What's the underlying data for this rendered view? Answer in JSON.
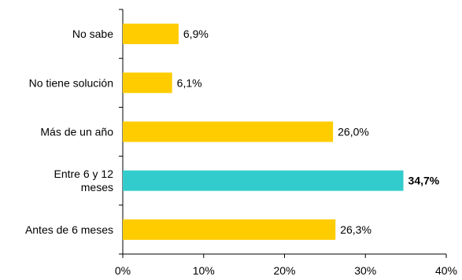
{
  "chart_data": {
    "type": "bar",
    "orientation": "horizontal",
    "categories": [
      [
        "No sabe"
      ],
      [
        "No tiene solución"
      ],
      [
        "Más de un año"
      ],
      [
        "Entre 6 y 12",
        "meses"
      ],
      [
        "Antes de 6 meses"
      ]
    ],
    "values": [
      6.9,
      6.1,
      26.0,
      34.7,
      26.3
    ],
    "data_labels": [
      "6,9%",
      "6,1%",
      "26,0%",
      "34,7%",
      "26,3%"
    ],
    "highlight_index": 3,
    "xlim": [
      0,
      40
    ],
    "x_ticks": [
      0,
      10,
      20,
      30,
      40
    ],
    "x_tick_labels": [
      "0%",
      "10%",
      "20%",
      "30%",
      "40%"
    ],
    "grid": false,
    "legend": "none",
    "colors": {
      "bar": "#FFCC00",
      "highlight": "#33CCCC",
      "axis": "#000000"
    }
  }
}
